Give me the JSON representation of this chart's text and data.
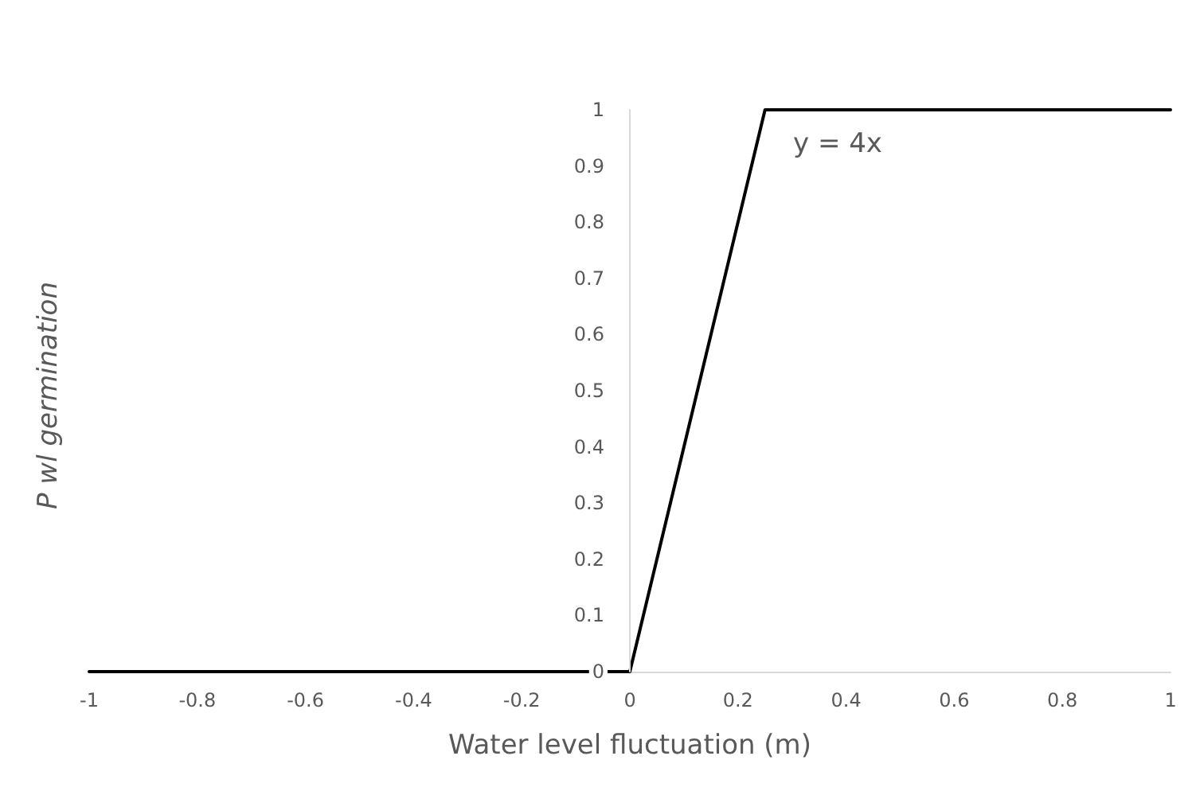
{
  "chart_data": {
    "type": "line",
    "xlabel": "Water level fluctuation (m)",
    "ylabel": "P wl germination",
    "x": [
      -1,
      0,
      0.25,
      1
    ],
    "series": [
      {
        "color": "#000000",
        "values": [
          0,
          0,
          1,
          1
        ]
      }
    ],
    "xlim": [
      -1,
      1
    ],
    "xticks": [
      -1,
      -0.8,
      -0.6,
      -0.4,
      -0.2,
      0,
      0.2,
      0.4,
      0.6,
      0.8,
      1
    ],
    "ylim": [
      0,
      1
    ],
    "yticks": [
      0,
      0.1,
      0.2,
      0.3,
      0.4,
      0.5,
      0.6,
      0.7,
      0.8,
      0.9,
      1
    ],
    "annotations": [
      "y = 4x"
    ],
    "grid": false,
    "marker": "none",
    "line_style": "solid"
  }
}
